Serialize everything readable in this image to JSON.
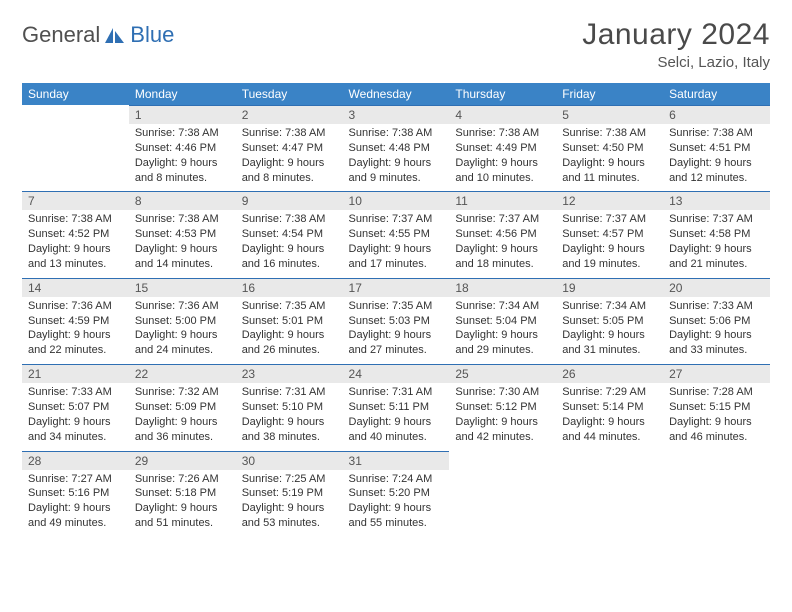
{
  "brand": {
    "text1": "General",
    "text2": "Blue"
  },
  "title": "January 2024",
  "location": "Selci, Lazio, Italy",
  "header_bg": "#3a83c6",
  "day_headers": [
    "Sunday",
    "Monday",
    "Tuesday",
    "Wednesday",
    "Thursday",
    "Friday",
    "Saturday"
  ],
  "weeks": [
    [
      {
        "n": "",
        "sr": "",
        "ss": "",
        "dl1": "",
        "dl2": ""
      },
      {
        "n": "1",
        "sr": "Sunrise: 7:38 AM",
        "ss": "Sunset: 4:46 PM",
        "dl1": "Daylight: 9 hours",
        "dl2": "and 8 minutes."
      },
      {
        "n": "2",
        "sr": "Sunrise: 7:38 AM",
        "ss": "Sunset: 4:47 PM",
        "dl1": "Daylight: 9 hours",
        "dl2": "and 8 minutes."
      },
      {
        "n": "3",
        "sr": "Sunrise: 7:38 AM",
        "ss": "Sunset: 4:48 PM",
        "dl1": "Daylight: 9 hours",
        "dl2": "and 9 minutes."
      },
      {
        "n": "4",
        "sr": "Sunrise: 7:38 AM",
        "ss": "Sunset: 4:49 PM",
        "dl1": "Daylight: 9 hours",
        "dl2": "and 10 minutes."
      },
      {
        "n": "5",
        "sr": "Sunrise: 7:38 AM",
        "ss": "Sunset: 4:50 PM",
        "dl1": "Daylight: 9 hours",
        "dl2": "and 11 minutes."
      },
      {
        "n": "6",
        "sr": "Sunrise: 7:38 AM",
        "ss": "Sunset: 4:51 PM",
        "dl1": "Daylight: 9 hours",
        "dl2": "and 12 minutes."
      }
    ],
    [
      {
        "n": "7",
        "sr": "Sunrise: 7:38 AM",
        "ss": "Sunset: 4:52 PM",
        "dl1": "Daylight: 9 hours",
        "dl2": "and 13 minutes."
      },
      {
        "n": "8",
        "sr": "Sunrise: 7:38 AM",
        "ss": "Sunset: 4:53 PM",
        "dl1": "Daylight: 9 hours",
        "dl2": "and 14 minutes."
      },
      {
        "n": "9",
        "sr": "Sunrise: 7:38 AM",
        "ss": "Sunset: 4:54 PM",
        "dl1": "Daylight: 9 hours",
        "dl2": "and 16 minutes."
      },
      {
        "n": "10",
        "sr": "Sunrise: 7:37 AM",
        "ss": "Sunset: 4:55 PM",
        "dl1": "Daylight: 9 hours",
        "dl2": "and 17 minutes."
      },
      {
        "n": "11",
        "sr": "Sunrise: 7:37 AM",
        "ss": "Sunset: 4:56 PM",
        "dl1": "Daylight: 9 hours",
        "dl2": "and 18 minutes."
      },
      {
        "n": "12",
        "sr": "Sunrise: 7:37 AM",
        "ss": "Sunset: 4:57 PM",
        "dl1": "Daylight: 9 hours",
        "dl2": "and 19 minutes."
      },
      {
        "n": "13",
        "sr": "Sunrise: 7:37 AM",
        "ss": "Sunset: 4:58 PM",
        "dl1": "Daylight: 9 hours",
        "dl2": "and 21 minutes."
      }
    ],
    [
      {
        "n": "14",
        "sr": "Sunrise: 7:36 AM",
        "ss": "Sunset: 4:59 PM",
        "dl1": "Daylight: 9 hours",
        "dl2": "and 22 minutes."
      },
      {
        "n": "15",
        "sr": "Sunrise: 7:36 AM",
        "ss": "Sunset: 5:00 PM",
        "dl1": "Daylight: 9 hours",
        "dl2": "and 24 minutes."
      },
      {
        "n": "16",
        "sr": "Sunrise: 7:35 AM",
        "ss": "Sunset: 5:01 PM",
        "dl1": "Daylight: 9 hours",
        "dl2": "and 26 minutes."
      },
      {
        "n": "17",
        "sr": "Sunrise: 7:35 AM",
        "ss": "Sunset: 5:03 PM",
        "dl1": "Daylight: 9 hours",
        "dl2": "and 27 minutes."
      },
      {
        "n": "18",
        "sr": "Sunrise: 7:34 AM",
        "ss": "Sunset: 5:04 PM",
        "dl1": "Daylight: 9 hours",
        "dl2": "and 29 minutes."
      },
      {
        "n": "19",
        "sr": "Sunrise: 7:34 AM",
        "ss": "Sunset: 5:05 PM",
        "dl1": "Daylight: 9 hours",
        "dl2": "and 31 minutes."
      },
      {
        "n": "20",
        "sr": "Sunrise: 7:33 AM",
        "ss": "Sunset: 5:06 PM",
        "dl1": "Daylight: 9 hours",
        "dl2": "and 33 minutes."
      }
    ],
    [
      {
        "n": "21",
        "sr": "Sunrise: 7:33 AM",
        "ss": "Sunset: 5:07 PM",
        "dl1": "Daylight: 9 hours",
        "dl2": "and 34 minutes."
      },
      {
        "n": "22",
        "sr": "Sunrise: 7:32 AM",
        "ss": "Sunset: 5:09 PM",
        "dl1": "Daylight: 9 hours",
        "dl2": "and 36 minutes."
      },
      {
        "n": "23",
        "sr": "Sunrise: 7:31 AM",
        "ss": "Sunset: 5:10 PM",
        "dl1": "Daylight: 9 hours",
        "dl2": "and 38 minutes."
      },
      {
        "n": "24",
        "sr": "Sunrise: 7:31 AM",
        "ss": "Sunset: 5:11 PM",
        "dl1": "Daylight: 9 hours",
        "dl2": "and 40 minutes."
      },
      {
        "n": "25",
        "sr": "Sunrise: 7:30 AM",
        "ss": "Sunset: 5:12 PM",
        "dl1": "Daylight: 9 hours",
        "dl2": "and 42 minutes."
      },
      {
        "n": "26",
        "sr": "Sunrise: 7:29 AM",
        "ss": "Sunset: 5:14 PM",
        "dl1": "Daylight: 9 hours",
        "dl2": "and 44 minutes."
      },
      {
        "n": "27",
        "sr": "Sunrise: 7:28 AM",
        "ss": "Sunset: 5:15 PM",
        "dl1": "Daylight: 9 hours",
        "dl2": "and 46 minutes."
      }
    ],
    [
      {
        "n": "28",
        "sr": "Sunrise: 7:27 AM",
        "ss": "Sunset: 5:16 PM",
        "dl1": "Daylight: 9 hours",
        "dl2": "and 49 minutes."
      },
      {
        "n": "29",
        "sr": "Sunrise: 7:26 AM",
        "ss": "Sunset: 5:18 PM",
        "dl1": "Daylight: 9 hours",
        "dl2": "and 51 minutes."
      },
      {
        "n": "30",
        "sr": "Sunrise: 7:25 AM",
        "ss": "Sunset: 5:19 PM",
        "dl1": "Daylight: 9 hours",
        "dl2": "and 53 minutes."
      },
      {
        "n": "31",
        "sr": "Sunrise: 7:24 AM",
        "ss": "Sunset: 5:20 PM",
        "dl1": "Daylight: 9 hours",
        "dl2": "and 55 minutes."
      },
      {
        "n": "",
        "sr": "",
        "ss": "",
        "dl1": "",
        "dl2": ""
      },
      {
        "n": "",
        "sr": "",
        "ss": "",
        "dl1": "",
        "dl2": ""
      },
      {
        "n": "",
        "sr": "",
        "ss": "",
        "dl1": "",
        "dl2": ""
      }
    ]
  ]
}
